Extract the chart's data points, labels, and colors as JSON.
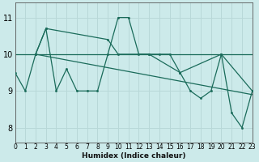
{
  "title": "",
  "xlabel": "Humidex (Indice chaleur)",
  "ylabel": "",
  "bg_color": "#cceaea",
  "line_color": "#1a6b5a",
  "grid_color": "#b8d8d8",
  "x_min": 0,
  "x_max": 23,
  "y_min": 7.6,
  "y_max": 11.4,
  "yticks": [
    8,
    9,
    10,
    11
  ],
  "xticks": [
    0,
    1,
    2,
    3,
    4,
    5,
    6,
    7,
    8,
    9,
    10,
    11,
    12,
    13,
    14,
    15,
    16,
    17,
    18,
    19,
    20,
    21,
    22,
    23
  ],
  "series1_x": [
    0,
    1,
    2,
    3,
    4,
    5,
    6,
    7,
    8,
    9,
    10,
    11,
    12,
    13,
    14,
    15,
    16,
    17,
    18,
    19,
    20,
    21,
    22,
    23
  ],
  "series1_y": [
    9.5,
    9.0,
    10.0,
    10.7,
    9.0,
    9.6,
    9.0,
    9.0,
    9.0,
    10.0,
    11.0,
    11.0,
    10.0,
    10.0,
    10.0,
    10.0,
    9.5,
    9.0,
    8.8,
    9.0,
    10.0,
    8.4,
    8.0,
    9.0
  ],
  "series2_x": [
    2,
    3,
    9,
    10,
    13,
    16,
    20,
    23
  ],
  "series2_y": [
    10.0,
    10.7,
    10.4,
    10.0,
    10.0,
    9.5,
    10.0,
    9.0
  ],
  "series3_x": [
    0,
    23
  ],
  "series3_y": [
    10.0,
    10.0
  ],
  "series4_x": [
    2,
    23
  ],
  "series4_y": [
    10.0,
    8.9
  ]
}
